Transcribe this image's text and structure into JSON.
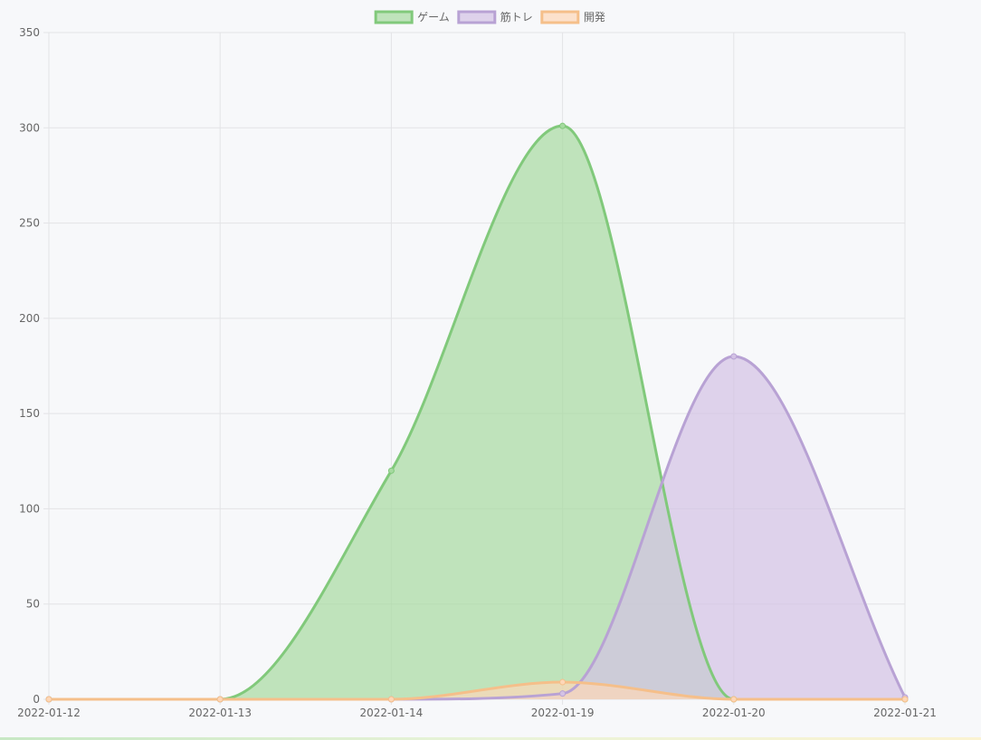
{
  "chart_data": {
    "type": "area",
    "categories": [
      "2022-01-12",
      "2022-01-13",
      "2022-01-14",
      "2022-01-19",
      "2022-01-20",
      "2022-01-21"
    ],
    "ylim": [
      0,
      350
    ],
    "yticks": [
      0,
      50,
      100,
      150,
      200,
      250,
      300,
      350
    ],
    "ytick_labels": [
      "0",
      "50",
      "100",
      "150",
      "200",
      "250",
      "300",
      "350"
    ],
    "grid": true,
    "legend_position": "top-center",
    "series": [
      {
        "name": "ゲーム",
        "values": [
          0,
          0,
          120,
          301,
          0,
          0
        ],
        "stroke": "#81c97b",
        "fill": "#a6daa0"
      },
      {
        "name": "筋トレ",
        "values": [
          0,
          0,
          0,
          3,
          180,
          1
        ],
        "stroke": "#b8a2d4",
        "fill": "#d3c2e4"
      },
      {
        "name": "開発",
        "values": [
          0,
          0,
          0,
          9,
          0,
          0
        ],
        "stroke": "#f5bf8a",
        "fill": "#fdd7b8"
      }
    ]
  }
}
